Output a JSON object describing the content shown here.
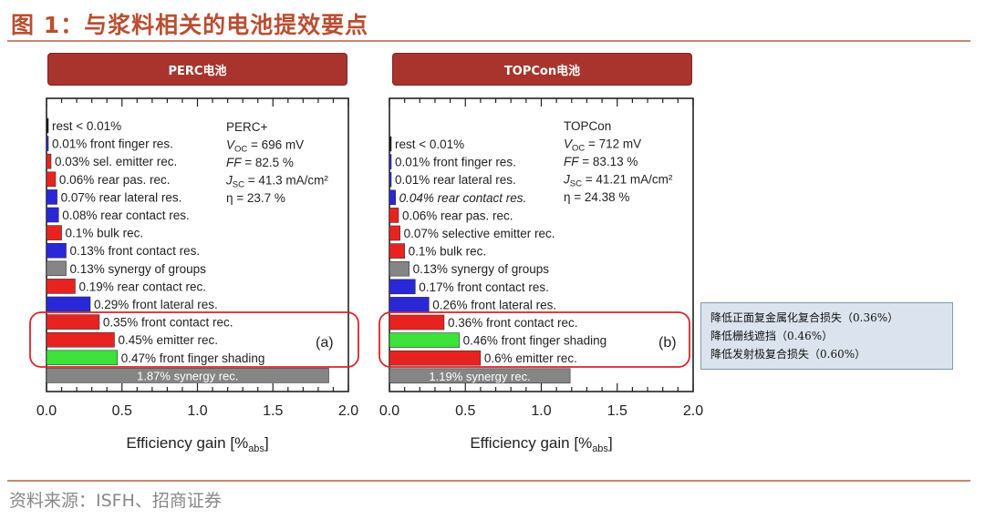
{
  "page_title": "图 1：与浆料相关的电池提效要点",
  "source_text": "资料来源：ISFH、招商证券",
  "colors": {
    "red": "#e8231f",
    "blue": "#2a27d6",
    "green": "#3de23b",
    "gray": "#858585",
    "header": "#a9342d",
    "accent": "#b94f32"
  },
  "callout": {
    "lines": [
      "降低正面复金属化复合损失（0.36%）",
      "降低栅线遮挡（0.46%）",
      "降低发射极复合损失（0.60%）"
    ]
  },
  "chart_data": [
    {
      "type": "bar",
      "orientation": "horizontal",
      "panel_header": "PERC电池",
      "panel_tag": "(a)",
      "info_lines": [
        "PERC+",
        "V_OC = 696 mV",
        "FF = 82.5 %",
        "J_SC = 41.3 mA/cm²",
        "η = 23.7 %"
      ],
      "xlabel": "Efficiency gain [%abs]",
      "xlim": [
        0,
        2
      ],
      "xticks": [
        "0.0",
        "0.5",
        "1.0",
        "1.5",
        "2.0"
      ],
      "bars": [
        {
          "label": "rest < 0.01%",
          "value": 0.005,
          "color": "black"
        },
        {
          "label": "0.01% front finger res.",
          "value": 0.01,
          "color": "blue"
        },
        {
          "label": "0.03% sel. emitter rec.",
          "value": 0.03,
          "color": "red"
        },
        {
          "label": "0.06% rear pas. rec.",
          "value": 0.06,
          "color": "red"
        },
        {
          "label": "0.07% rear lateral res.",
          "value": 0.07,
          "color": "blue"
        },
        {
          "label": "0.08% rear contact res.",
          "value": 0.08,
          "color": "blue"
        },
        {
          "label": "0.1% bulk rec.",
          "value": 0.1,
          "color": "red"
        },
        {
          "label": "0.13% front contact res.",
          "value": 0.13,
          "color": "blue"
        },
        {
          "label": "0.13% synergy of groups",
          "value": 0.13,
          "color": "gray"
        },
        {
          "label": "0.19% rear contact rec.",
          "value": 0.19,
          "color": "red"
        },
        {
          "label": "0.29% front lateral res.",
          "value": 0.29,
          "color": "blue"
        },
        {
          "label": "0.35% front contact rec.",
          "value": 0.35,
          "color": "red"
        },
        {
          "label": "0.45% emitter rec.",
          "value": 0.45,
          "color": "red"
        },
        {
          "label": "0.47% front finger shading",
          "value": 0.47,
          "color": "green"
        },
        {
          "label": "1.87% synergy rec.",
          "value": 1.87,
          "color": "gray"
        }
      ]
    },
    {
      "type": "bar",
      "orientation": "horizontal",
      "panel_header": "TOPCon电池",
      "panel_tag": "(b)",
      "info_lines": [
        "TOPCon",
        "V_OC = 712 mV",
        "FF = 83.13 %",
        "J_SC = 41.21 mA/cm²",
        "η = 24.38 %"
      ],
      "xlabel": "Efficiency gain [%abs]",
      "xlim": [
        0,
        2
      ],
      "xticks": [
        "0.0",
        "0.5",
        "1.0",
        "1.5",
        "2.0"
      ],
      "bars": [
        {
          "label": "rest < 0.01%",
          "value": 0.005,
          "color": "black"
        },
        {
          "label": "0.01% front finger res.",
          "value": 0.01,
          "color": "blue"
        },
        {
          "label": "0.01% rear lateral res.",
          "value": 0.01,
          "color": "blue"
        },
        {
          "label": "0.04% rear contact res.",
          "value": 0.04,
          "color": "blue"
        },
        {
          "label": "0.06% rear pas. rec.",
          "value": 0.06,
          "color": "red"
        },
        {
          "label": "0.07% selective emitter rec.",
          "value": 0.07,
          "color": "red"
        },
        {
          "label": "0.1% bulk rec.",
          "value": 0.1,
          "color": "red"
        },
        {
          "label": "0.13% synergy of groups",
          "value": 0.13,
          "color": "gray"
        },
        {
          "label": "0.17% front contact res.",
          "value": 0.17,
          "color": "blue"
        },
        {
          "label": "0.26% front lateral res.",
          "value": 0.26,
          "color": "blue"
        },
        {
          "label": "0.36% front contact rec.",
          "value": 0.36,
          "color": "red"
        },
        {
          "label": "0.46% front finger shading",
          "value": 0.46,
          "color": "green"
        },
        {
          "label": "0.6% emitter rec.",
          "value": 0.6,
          "color": "red"
        },
        {
          "label": "1.19% synergy rec.",
          "value": 1.19,
          "color": "gray"
        }
      ]
    }
  ]
}
